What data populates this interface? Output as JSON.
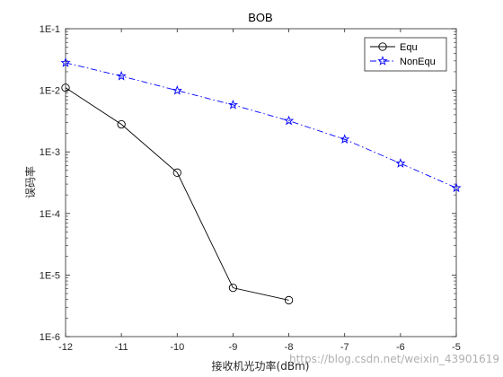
{
  "chart_data": {
    "type": "line",
    "title": "BOB",
    "xlabel": "接收机光功率(dBm)",
    "ylabel": "误码率",
    "x_scale": "linear",
    "y_scale": "log",
    "xlim": [
      -12,
      -5
    ],
    "ylim": [
      1e-06,
      0.1
    ],
    "x_ticks": [
      -12,
      -11,
      -10,
      -9,
      -8,
      -7,
      -6,
      -5
    ],
    "x_tick_labels": [
      "-12",
      "-11",
      "-10",
      "-9",
      "-8",
      "-7",
      "-6",
      "-5"
    ],
    "y_ticks": [
      0.1,
      0.01,
      0.001,
      0.0001,
      1e-05,
      1e-06
    ],
    "y_tick_labels": [
      "1E-1",
      "1E-2",
      "1E-3",
      "1E-4",
      "1E-5",
      "1E-6"
    ],
    "grid": false,
    "legend_position": "top-right",
    "series": [
      {
        "name": "Equ",
        "color": "#000000",
        "line_style": "solid",
        "marker": "circle",
        "x": [
          -12,
          -11,
          -10,
          -9,
          -8
        ],
        "y": [
          0.011,
          0.0028,
          0.00046,
          6.2e-06,
          3.9e-06
        ]
      },
      {
        "name": "NonEqu",
        "color": "#0000ff",
        "line_style": "dash-dot",
        "marker": "pentagram",
        "x": [
          -12,
          -11,
          -10,
          -9,
          -8,
          -7,
          -6,
          -5
        ],
        "y": [
          0.028,
          0.017,
          0.0099,
          0.0058,
          0.0032,
          0.0016,
          0.00065,
          0.00026
        ]
      }
    ]
  },
  "watermark": "https://blog.csdn.net/weixin_43901619"
}
